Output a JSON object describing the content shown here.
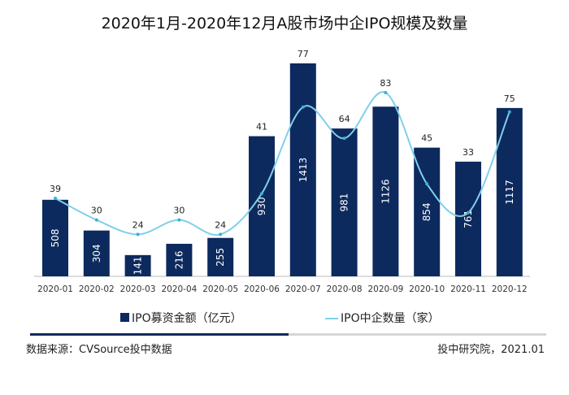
{
  "chart_data": {
    "type": "bar+line",
    "title": "2020年1月-2020年12月A股市场中企IPO规模及数量",
    "categories": [
      "2020-01",
      "2020-02",
      "2020-03",
      "2020-04",
      "2020-05",
      "2020-06",
      "2020-07",
      "2020-08",
      "2020-09",
      "2020-10",
      "2020-11",
      "2020-12"
    ],
    "series": [
      {
        "name": "IPO募资金额（亿元）",
        "type": "bar",
        "color": "#0d2a5e",
        "values": [
          508,
          304,
          141,
          216,
          255,
          930,
          1413,
          981,
          1126,
          854,
          761,
          1117
        ]
      },
      {
        "name": "IPO中企数量（家）",
        "type": "line",
        "color": "#7fd0ea",
        "values": [
          39,
          30,
          24,
          30,
          24,
          41,
          77,
          64,
          83,
          45,
          33,
          75
        ]
      }
    ],
    "legend": "bottom"
  },
  "footer": {
    "source": "数据来源：CVSource投中数据",
    "credit": "投中研究院，2021.01"
  }
}
